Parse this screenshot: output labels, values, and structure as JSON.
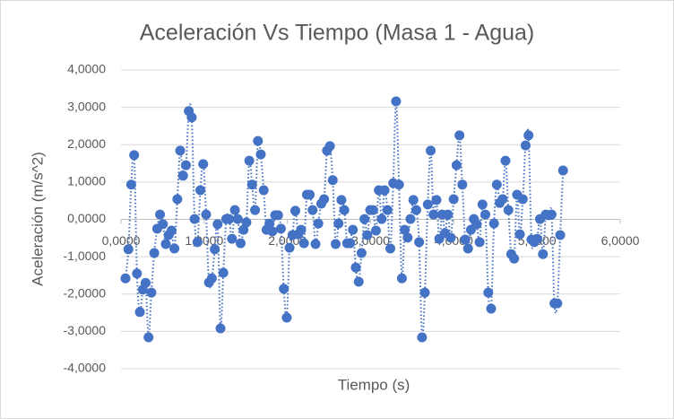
{
  "chart_data": {
    "type": "scatter",
    "title": "Aceleración Vs Tiempo (Masa 1 - Agua)",
    "x_label": "Tiempo (s)",
    "y_label": "Aceleración (m/s^2)",
    "xlim": [
      0,
      6
    ],
    "ylim": [
      -4,
      4
    ],
    "xticks": [
      {
        "value": 0,
        "label": "0,0000"
      },
      {
        "value": 1,
        "label": "1,0000"
      },
      {
        "value": 2,
        "label": "2,0000"
      },
      {
        "value": 3,
        "label": "3,0000"
      },
      {
        "value": 4,
        "label": "4,0000"
      },
      {
        "value": 5,
        "label": "5,0000"
      },
      {
        "value": 6,
        "label": "6,0000"
      }
    ],
    "yticks": [
      {
        "value": 4,
        "label": "4,0000"
      },
      {
        "value": 3,
        "label": "3,0000"
      },
      {
        "value": 2,
        "label": "2,0000"
      },
      {
        "value": 1,
        "label": "1,0000"
      },
      {
        "value": 0,
        "label": "0,0000"
      },
      {
        "value": -1,
        "label": "-1,0000"
      },
      {
        "value": -2,
        "label": "-2,0000"
      },
      {
        "value": -3,
        "label": "-3,0000"
      },
      {
        "value": -4,
        "label": "-4,0000"
      }
    ],
    "grid": true,
    "color": "#4472c4",
    "x": [
      0.054,
      0.089,
      0.123,
      0.158,
      0.192,
      0.227,
      0.262,
      0.296,
      0.331,
      0.365,
      0.4,
      0.435,
      0.469,
      0.504,
      0.538,
      0.573,
      0.608,
      0.642,
      0.677,
      0.711,
      0.746,
      0.781,
      0.815,
      0.85,
      0.884,
      0.919,
      0.954,
      0.988,
      1.023,
      1.057,
      1.092,
      1.127,
      1.161,
      1.196,
      1.23,
      1.265,
      1.3,
      1.334,
      1.369,
      1.403,
      1.438,
      1.473,
      1.507,
      1.542,
      1.576,
      1.611,
      1.646,
      1.68,
      1.715,
      1.749,
      1.784,
      1.819,
      1.853,
      1.888,
      1.922,
      1.957,
      1.992,
      2.026,
      2.061,
      2.095,
      2.13,
      2.165,
      2.199,
      2.234,
      2.268,
      2.303,
      2.338,
      2.372,
      2.407,
      2.441,
      2.476,
      2.511,
      2.545,
      2.58,
      2.614,
      2.649,
      2.684,
      2.718,
      2.753,
      2.787,
      2.822,
      2.857,
      2.891,
      2.926,
      2.96,
      2.995,
      3.03,
      3.064,
      3.099,
      3.133,
      3.168,
      3.203,
      3.237,
      3.272,
      3.306,
      3.341,
      3.376,
      3.41,
      3.445,
      3.479,
      3.514,
      3.549,
      3.583,
      3.618,
      3.652,
      3.687,
      3.722,
      3.756,
      3.791,
      3.825,
      3.86,
      3.895,
      3.929,
      3.964,
      3.998,
      4.033,
      4.068,
      4.102,
      4.137,
      4.171,
      4.206,
      4.241,
      4.275,
      4.31,
      4.344,
      4.379,
      4.414,
      4.448,
      4.483,
      4.517,
      4.552,
      4.587,
      4.621,
      4.656,
      4.69,
      4.725,
      4.76,
      4.794,
      4.829,
      4.863,
      4.898,
      4.933,
      4.967,
      5.002,
      5.036,
      5.071,
      5.106,
      5.14,
      5.175,
      5.209,
      5.244,
      5.279,
      5.313
    ],
    "values": [
      -1.58,
      -0.8,
      0.93,
      1.72,
      -1.45,
      -2.48,
      -1.88,
      -1.7,
      -3.16,
      -1.96,
      -0.9,
      -0.25,
      0.13,
      -0.13,
      -0.66,
      -0.42,
      -0.3,
      -0.78,
      0.54,
      1.84,
      1.17,
      1.45,
      2.9,
      2.73,
      0.01,
      -0.61,
      0.78,
      1.48,
      0.13,
      -1.69,
      -1.58,
      -0.8,
      -0.13,
      -2.92,
      -1.43,
      0.01,
      0.01,
      -0.52,
      0.25,
      0.01,
      -0.64,
      -0.28,
      -0.08,
      1.57,
      0.93,
      0.25,
      2.1,
      1.74,
      0.78,
      -0.28,
      -0.11,
      -0.32,
      0.11,
      0.11,
      -0.25,
      -1.86,
      -2.63,
      -0.76,
      -0.42,
      0.23,
      -0.4,
      -0.28,
      -0.64,
      0.66,
      0.66,
      0.25,
      -0.66,
      -0.11,
      0.42,
      0.54,
      1.84,
      1.96,
      1.05,
      -0.66,
      -0.11,
      0.52,
      0.25,
      -0.64,
      -0.64,
      -0.28,
      -1.29,
      -1.67,
      -0.9,
      0.01,
      -0.42,
      0.25,
      0.25,
      -0.3,
      0.78,
      0.01,
      0.78,
      0.25,
      -0.78,
      0.97,
      3.16,
      0.93,
      -1.58,
      -0.28,
      -0.49,
      0.01,
      0.52,
      0.25,
      -0.61,
      -3.16,
      -1.96,
      0.4,
      1.84,
      0.13,
      0.52,
      -0.52,
      0.13,
      -0.37,
      0.13,
      -0.49,
      0.54,
      1.45,
      2.25,
      0.93,
      -0.54,
      -0.78,
      -0.28,
      0.01,
      -0.13,
      -0.61,
      0.4,
      0.13,
      -1.96,
      -2.39,
      -0.11,
      0.93,
      0.44,
      0.54,
      1.57,
      0.25,
      -0.93,
      -1.05,
      0.66,
      -0.4,
      0.54,
      1.98,
      2.25,
      -0.54,
      -0.61,
      -0.52,
      0.01,
      -0.93,
      0.13,
      0.11,
      0.13,
      -2.25,
      -2.25,
      -0.42,
      1.31
    ]
  }
}
